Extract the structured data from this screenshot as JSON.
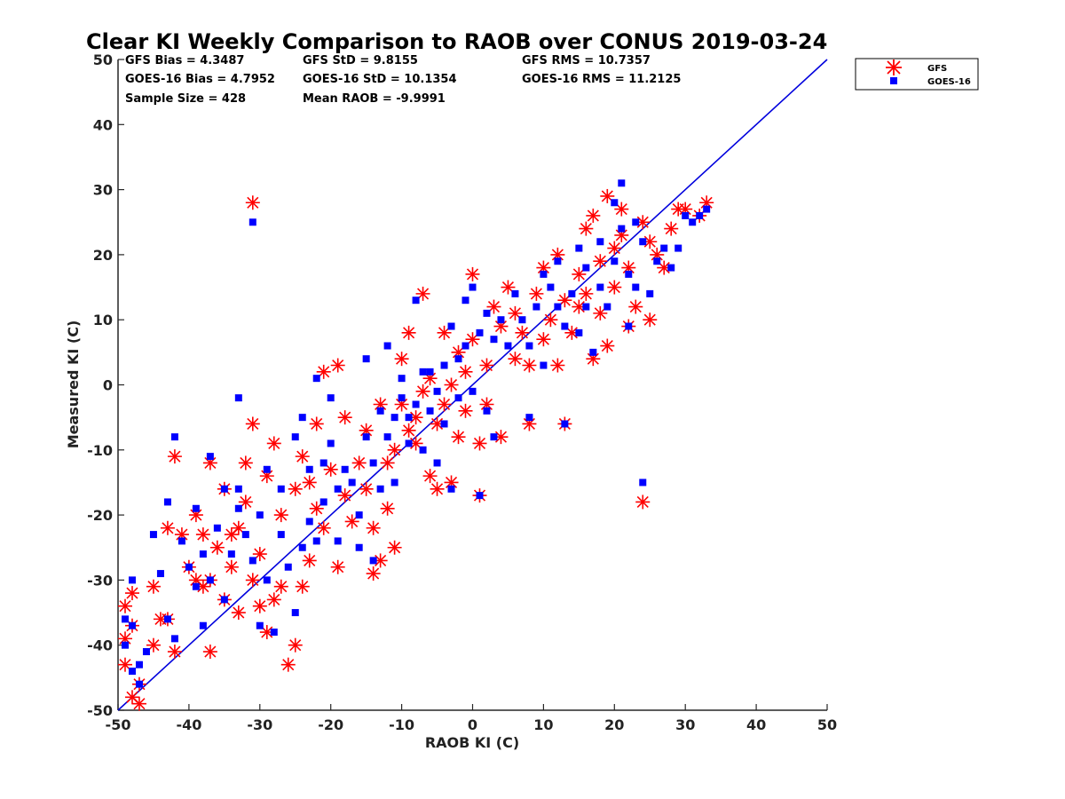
{
  "chart_data": {
    "type": "scatter",
    "title": "Clear KI Weekly Comparison to RAOB over CONUS 2019-03-24",
    "xlabel": "RAOB KI (C)",
    "ylabel": "Measured KI (C)",
    "xlim": [
      -50,
      50
    ],
    "ylim": [
      -50,
      50
    ],
    "xticks": [
      "-50",
      "-40",
      "-30",
      "-20",
      "-10",
      "0",
      "10",
      "20",
      "30",
      "40",
      "50"
    ],
    "yticks": [
      "50",
      "40",
      "30",
      "20",
      "10",
      "0",
      "-10",
      "-20",
      "-30",
      "-40",
      "-50"
    ],
    "reference_line": {
      "name": "1:1 line",
      "color": "#0000dd",
      "from": [
        -50,
        -50
      ],
      "to": [
        50,
        50
      ]
    },
    "stats": {
      "gfs_bias": "GFS Bias = 4.3487",
      "gfs_std": "GFS StD = 9.8155",
      "gfs_rms": "GFS RMS = 10.7357",
      "goes_bias": "GOES-16 Bias = 4.7952",
      "goes_std": "GOES-16 StD = 10.1354",
      "goes_rms": "GOES-16 RMS = 11.2125",
      "sample_size": "Sample Size = 428",
      "mean_raob": "Mean RAOB = -9.9991"
    },
    "legend": {
      "position": "top-right",
      "entries": [
        "GFS",
        "GOES-16"
      ]
    },
    "series": [
      {
        "name": "GFS",
        "marker": "asterisk",
        "color": "#ff0000",
        "points": [
          [
            -31,
            28
          ],
          [
            -49,
            -39
          ],
          [
            -48,
            -37
          ],
          [
            -49,
            -43
          ],
          [
            -48,
            -48
          ],
          [
            -47,
            -49
          ],
          [
            -49,
            -34
          ],
          [
            -48,
            -32
          ],
          [
            -47,
            -46
          ],
          [
            -45,
            -40
          ],
          [
            -45,
            -31
          ],
          [
            -44,
            -36
          ],
          [
            -43,
            -36
          ],
          [
            -43,
            -22
          ],
          [
            -42,
            -41
          ],
          [
            -42,
            -11
          ],
          [
            -41,
            -23
          ],
          [
            -40,
            -28
          ],
          [
            -39,
            -30
          ],
          [
            -39,
            -20
          ],
          [
            -38,
            -23
          ],
          [
            -38,
            -31
          ],
          [
            -37,
            -12
          ],
          [
            -37,
            -41
          ],
          [
            -37,
            -30
          ],
          [
            -36,
            -25
          ],
          [
            -35,
            -16
          ],
          [
            -35,
            -33
          ],
          [
            -34,
            -28
          ],
          [
            -34,
            -23
          ],
          [
            -33,
            -22
          ],
          [
            -33,
            -35
          ],
          [
            -32,
            -18
          ],
          [
            -32,
            -12
          ],
          [
            -31,
            -6
          ],
          [
            -31,
            -30
          ],
          [
            -30,
            -34
          ],
          [
            -30,
            -26
          ],
          [
            -29,
            -14
          ],
          [
            -29,
            -38
          ],
          [
            -28,
            -9
          ],
          [
            -28,
            -33
          ],
          [
            -27,
            -31
          ],
          [
            -27,
            -20
          ],
          [
            -26,
            -43
          ],
          [
            -25,
            -16
          ],
          [
            -25,
            -40
          ],
          [
            -24,
            -31
          ],
          [
            -24,
            -11
          ],
          [
            -23,
            -27
          ],
          [
            -23,
            -15
          ],
          [
            -22,
            -6
          ],
          [
            -22,
            -19
          ],
          [
            -21,
            2
          ],
          [
            -21,
            -22
          ],
          [
            -20,
            -13
          ],
          [
            -19,
            3
          ],
          [
            -19,
            -28
          ],
          [
            -18,
            -17
          ],
          [
            -18,
            -5
          ],
          [
            -17,
            -21
          ],
          [
            -16,
            -12
          ],
          [
            -15,
            -16
          ],
          [
            -15,
            -7
          ],
          [
            -14,
            -22
          ],
          [
            -14,
            -29
          ],
          [
            -13,
            -27
          ],
          [
            -13,
            -3
          ],
          [
            -12,
            -12
          ],
          [
            -12,
            -19
          ],
          [
            -11,
            -10
          ],
          [
            -11,
            -25
          ],
          [
            -10,
            4
          ],
          [
            -10,
            -3
          ],
          [
            -9,
            -7
          ],
          [
            -9,
            8
          ],
          [
            -8,
            -5
          ],
          [
            -8,
            -9
          ],
          [
            -7,
            14
          ],
          [
            -7,
            -1
          ],
          [
            -6,
            -14
          ],
          [
            -6,
            1
          ],
          [
            -5,
            -16
          ],
          [
            -5,
            -6
          ],
          [
            -4,
            8
          ],
          [
            -4,
            -3
          ],
          [
            -3,
            -15
          ],
          [
            -3,
            0
          ],
          [
            -2,
            5
          ],
          [
            -2,
            -8
          ],
          [
            -1,
            2
          ],
          [
            -1,
            -4
          ],
          [
            0,
            17
          ],
          [
            0,
            7
          ],
          [
            1,
            -17
          ],
          [
            1,
            -9
          ],
          [
            2,
            3
          ],
          [
            2,
            -3
          ],
          [
            3,
            12
          ],
          [
            4,
            -8
          ],
          [
            4,
            9
          ],
          [
            5,
            15
          ],
          [
            6,
            4
          ],
          [
            6,
            11
          ],
          [
            7,
            8
          ],
          [
            8,
            3
          ],
          [
            8,
            -6
          ],
          [
            9,
            14
          ],
          [
            10,
            7
          ],
          [
            10,
            18
          ],
          [
            11,
            10
          ],
          [
            12,
            3
          ],
          [
            12,
            20
          ],
          [
            13,
            -6
          ],
          [
            13,
            13
          ],
          [
            14,
            8
          ],
          [
            15,
            12
          ],
          [
            15,
            17
          ],
          [
            16,
            24
          ],
          [
            16,
            14
          ],
          [
            17,
            4
          ],
          [
            17,
            26
          ],
          [
            18,
            19
          ],
          [
            18,
            11
          ],
          [
            19,
            29
          ],
          [
            19,
            6
          ],
          [
            20,
            21
          ],
          [
            20,
            15
          ],
          [
            21,
            23
          ],
          [
            21,
            27
          ],
          [
            22,
            9
          ],
          [
            22,
            18
          ],
          [
            23,
            12
          ],
          [
            24,
            25
          ],
          [
            24,
            -18
          ],
          [
            25,
            10
          ],
          [
            25,
            22
          ],
          [
            26,
            20
          ],
          [
            27,
            18
          ],
          [
            28,
            24
          ],
          [
            29,
            27
          ],
          [
            30,
            27
          ],
          [
            32,
            26
          ],
          [
            33,
            28
          ]
        ]
      },
      {
        "name": "GOES-16",
        "marker": "square",
        "color": "#0000ff",
        "points": [
          [
            -31,
            25
          ],
          [
            -33,
            -2
          ],
          [
            -49,
            -40
          ],
          [
            -49,
            -36
          ],
          [
            -48,
            -44
          ],
          [
            -48,
            -30
          ],
          [
            -48,
            -37
          ],
          [
            -47,
            -46
          ],
          [
            -47,
            -43
          ],
          [
            -46,
            -41
          ],
          [
            -45,
            -23
          ],
          [
            -44,
            -29
          ],
          [
            -43,
            -36
          ],
          [
            -43,
            -18
          ],
          [
            -42,
            -39
          ],
          [
            -42,
            -8
          ],
          [
            -41,
            -24
          ],
          [
            -40,
            -28
          ],
          [
            -39,
            -31
          ],
          [
            -39,
            -19
          ],
          [
            -38,
            -26
          ],
          [
            -38,
            -37
          ],
          [
            -37,
            -11
          ],
          [
            -37,
            -30
          ],
          [
            -36,
            -22
          ],
          [
            -35,
            -33
          ],
          [
            -35,
            -16
          ],
          [
            -34,
            -26
          ],
          [
            -33,
            -19
          ],
          [
            -33,
            -16
          ],
          [
            -32,
            -23
          ],
          [
            -31,
            -27
          ],
          [
            -30,
            -37
          ],
          [
            -30,
            -20
          ],
          [
            -29,
            -30
          ],
          [
            -29,
            -13
          ],
          [
            -28,
            -38
          ],
          [
            -27,
            -23
          ],
          [
            -27,
            -16
          ],
          [
            -26,
            -28
          ],
          [
            -25,
            -35
          ],
          [
            -25,
            -8
          ],
          [
            -24,
            -25
          ],
          [
            -24,
            -5
          ],
          [
            -23,
            -21
          ],
          [
            -23,
            -13
          ],
          [
            -22,
            1
          ],
          [
            -22,
            -24
          ],
          [
            -21,
            -12
          ],
          [
            -21,
            -18
          ],
          [
            -20,
            -9
          ],
          [
            -20,
            -2
          ],
          [
            -19,
            -24
          ],
          [
            -19,
            -16
          ],
          [
            -18,
            -13
          ],
          [
            -17,
            -15
          ],
          [
            -16,
            -20
          ],
          [
            -16,
            -25
          ],
          [
            -15,
            4
          ],
          [
            -15,
            -8
          ],
          [
            -14,
            -12
          ],
          [
            -14,
            -27
          ],
          [
            -13,
            -4
          ],
          [
            -13,
            -16
          ],
          [
            -12,
            -8
          ],
          [
            -12,
            6
          ],
          [
            -11,
            -5
          ],
          [
            -11,
            -15
          ],
          [
            -10,
            -2
          ],
          [
            -10,
            1
          ],
          [
            -9,
            -9
          ],
          [
            -9,
            -5
          ],
          [
            -8,
            13
          ],
          [
            -8,
            -3
          ],
          [
            -7,
            2
          ],
          [
            -7,
            -10
          ],
          [
            -6,
            -4
          ],
          [
            -6,
            2
          ],
          [
            -5,
            -1
          ],
          [
            -5,
            -12
          ],
          [
            -4,
            3
          ],
          [
            -4,
            -6
          ],
          [
            -3,
            9
          ],
          [
            -3,
            -16
          ],
          [
            -2,
            4
          ],
          [
            -2,
            -2
          ],
          [
            -1,
            13
          ],
          [
            -1,
            6
          ],
          [
            0,
            -1
          ],
          [
            0,
            15
          ],
          [
            1,
            8
          ],
          [
            1,
            -17
          ],
          [
            2,
            -4
          ],
          [
            2,
            11
          ],
          [
            3,
            -8
          ],
          [
            3,
            7
          ],
          [
            4,
            10
          ],
          [
            5,
            6
          ],
          [
            6,
            14
          ],
          [
            7,
            10
          ],
          [
            8,
            6
          ],
          [
            8,
            -5
          ],
          [
            9,
            12
          ],
          [
            10,
            3
          ],
          [
            10,
            17
          ],
          [
            11,
            15
          ],
          [
            12,
            12
          ],
          [
            12,
            19
          ],
          [
            13,
            -6
          ],
          [
            13,
            9
          ],
          [
            14,
            14
          ],
          [
            15,
            21
          ],
          [
            15,
            8
          ],
          [
            16,
            18
          ],
          [
            16,
            12
          ],
          [
            17,
            5
          ],
          [
            18,
            22
          ],
          [
            18,
            15
          ],
          [
            19,
            12
          ],
          [
            20,
            28
          ],
          [
            20,
            19
          ],
          [
            21,
            31
          ],
          [
            21,
            24
          ],
          [
            22,
            9
          ],
          [
            22,
            17
          ],
          [
            23,
            15
          ],
          [
            23,
            25
          ],
          [
            24,
            -15
          ],
          [
            24,
            22
          ],
          [
            25,
            14
          ],
          [
            26,
            19
          ],
          [
            27,
            21
          ],
          [
            28,
            18
          ],
          [
            29,
            21
          ],
          [
            30,
            26
          ],
          [
            31,
            25
          ],
          [
            32,
            26
          ],
          [
            33,
            27
          ]
        ]
      }
    ]
  }
}
